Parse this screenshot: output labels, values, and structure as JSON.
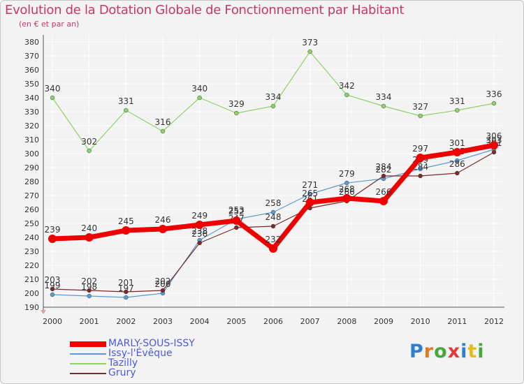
{
  "header": {
    "title": "Evolution de la Dotation Globale de Fonctionnement par Habitant",
    "subtitle": "(en € et par an)"
  },
  "logo": {
    "text": "Proxiti",
    "letter_colors": [
      "#2f7fd0",
      "#e8761f",
      "#44a83a",
      "#e03a3a",
      "#2f7fd0",
      "#e8b81f",
      "#44a83a"
    ]
  },
  "colors": {
    "background": "#f3f3f3",
    "grid": "#ffffff",
    "axis": "#555555",
    "tick_text": "#333333",
    "title": "#c9366a",
    "legend_text": "#4a5adf"
  },
  "chart_data": {
    "type": "line",
    "title": "Evolution de la Dotation Globale de Fonctionnement par Habitant",
    "subtitle": "(en € et par an)",
    "x": [
      "2000",
      "2001",
      "2002",
      "2003",
      "2004",
      "2005",
      "2006",
      "2007",
      "2008",
      "2009",
      "2010",
      "2011",
      "2012"
    ],
    "y_ticks": [
      190,
      200,
      210,
      220,
      230,
      240,
      250,
      260,
      270,
      280,
      290,
      300,
      310,
      320,
      330,
      340,
      350,
      360,
      370,
      380
    ],
    "ylim": [
      190,
      380
    ],
    "grid": true,
    "legend_position": "bottom-left",
    "series": [
      {
        "name": "MARLY-SOUS-ISSY",
        "color": "#ee0000",
        "width": 7,
        "values": [
          239,
          240,
          245,
          246,
          249,
          252,
          232,
          265,
          268,
          266,
          297,
          301,
          306
        ]
      },
      {
        "name": "Issy-l'Évêque",
        "color": "#5b9bd5",
        "width": 1.2,
        "values": [
          199,
          198,
          197,
          200,
          238,
          253,
          258,
          271,
          279,
          282,
          289,
          295,
          303
        ]
      },
      {
        "name": "Tazilly",
        "color": "#8fd16a",
        "width": 1.2,
        "values": [
          340,
          302,
          331,
          316,
          340,
          329,
          334,
          373,
          342,
          334,
          327,
          331,
          336
        ]
      },
      {
        "name": "Grury",
        "color": "#7a2a2a",
        "width": 1.2,
        "values": [
          203,
          202,
          201,
          202,
          236,
          247,
          248,
          261,
          266,
          284,
          284,
          286,
          301
        ]
      }
    ]
  }
}
